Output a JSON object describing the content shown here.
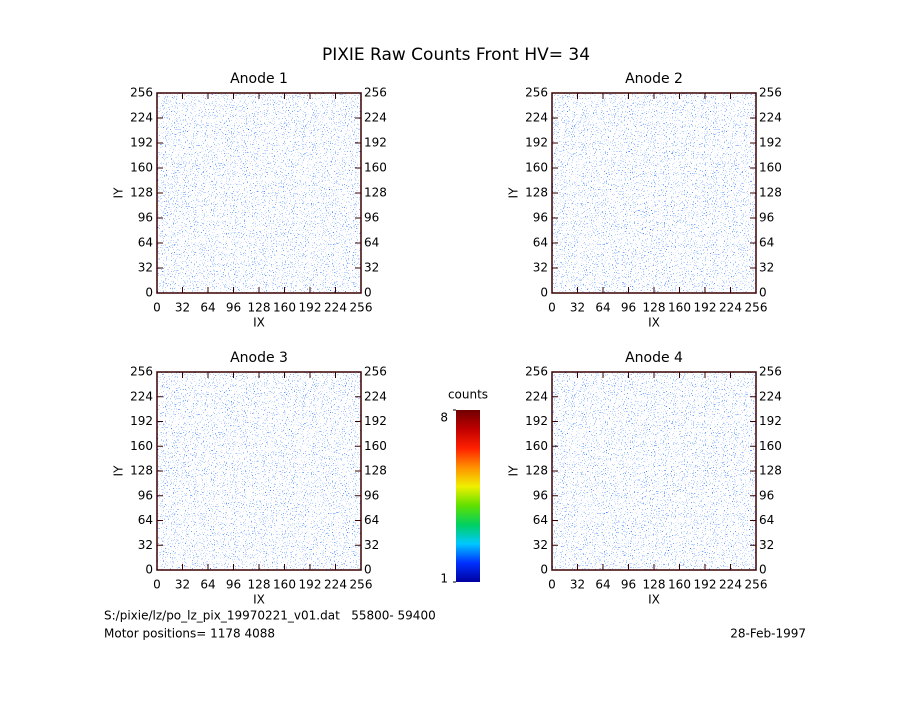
{
  "title": "PIXIE Raw Counts Front HV= 34",
  "footer": {
    "file": "S:/pixie/lz/po_lz_pix_19970221_v01.dat   55800- 59400",
    "motor": "Motor positions= 1178 4088",
    "date": "28-Feb-1997"
  },
  "colorbar": {
    "label": "counts",
    "lim": [
      1,
      8
    ],
    "ticks": [
      1,
      8
    ],
    "colormap": [
      "#0000a0",
      "#0030ff",
      "#00c8ff",
      "#00d060",
      "#60e000",
      "#f0f000",
      "#ff9000",
      "#ff2000",
      "#c00000",
      "#700000"
    ]
  },
  "chart_data": [
    {
      "type": "heatmap",
      "title": "Anode 1",
      "xlabel": "IX",
      "ylabel": "IY",
      "xlim": [
        0,
        256
      ],
      "ylim": [
        0,
        256
      ],
      "y2lim": [
        0,
        256
      ],
      "xticks": [
        0,
        32,
        64,
        96,
        128,
        160,
        192,
        224,
        256
      ],
      "yticks": [
        0,
        32,
        64,
        96,
        128,
        160,
        192,
        224,
        256
      ],
      "y2ticks": [
        0,
        32,
        64,
        96,
        128,
        160,
        192,
        224,
        256
      ]
    },
    {
      "type": "heatmap",
      "title": "Anode 2",
      "xlabel": "IX",
      "ylabel": "IY",
      "xlim": [
        0,
        256
      ],
      "ylim": [
        0,
        256
      ],
      "y2lim": [
        0,
        256
      ],
      "xticks": [
        0,
        32,
        64,
        96,
        128,
        160,
        192,
        224,
        256
      ],
      "yticks": [
        0,
        32,
        64,
        96,
        128,
        160,
        192,
        224,
        256
      ],
      "y2ticks": [
        0,
        32,
        64,
        96,
        128,
        160,
        192,
        224,
        256
      ]
    },
    {
      "type": "heatmap",
      "title": "Anode 3",
      "xlabel": "IX",
      "ylabel": "IY",
      "xlim": [
        0,
        256
      ],
      "ylim": [
        0,
        256
      ],
      "y2lim": [
        0,
        256
      ],
      "xticks": [
        0,
        32,
        64,
        96,
        128,
        160,
        192,
        224,
        256
      ],
      "yticks": [
        0,
        32,
        64,
        96,
        128,
        160,
        192,
        224,
        256
      ],
      "y2ticks": [
        0,
        32,
        64,
        96,
        128,
        160,
        192,
        224,
        256
      ]
    },
    {
      "type": "heatmap",
      "title": "Anode 4",
      "xlabel": "IX",
      "ylabel": "IY",
      "xlim": [
        0,
        256
      ],
      "ylim": [
        0,
        256
      ],
      "y2lim": [
        0,
        256
      ],
      "xticks": [
        0,
        32,
        64,
        96,
        128,
        160,
        192,
        224,
        256
      ],
      "yticks": [
        0,
        32,
        64,
        96,
        128,
        160,
        192,
        224,
        256
      ],
      "y2ticks": [
        0,
        32,
        64,
        96,
        128,
        160,
        192,
        224,
        256
      ]
    }
  ]
}
